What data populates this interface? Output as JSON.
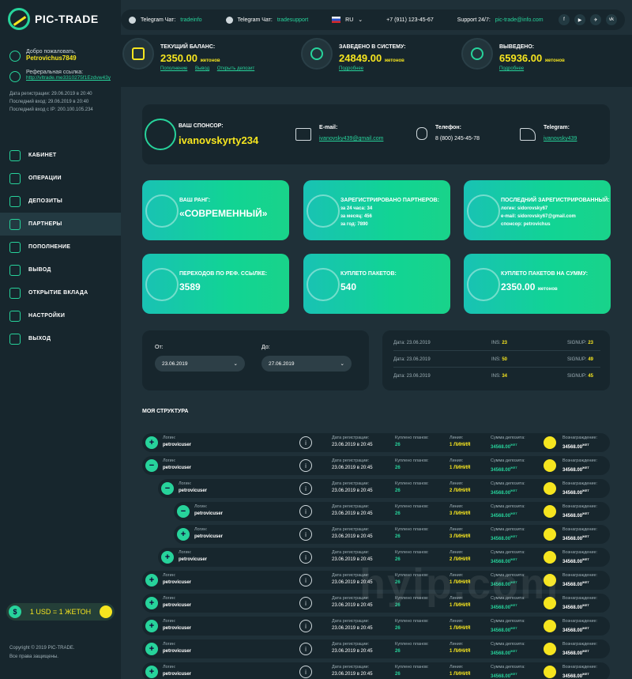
{
  "brand": {
    "name": "PIC-TRADE"
  },
  "user": {
    "welcome": "Добро пожаловать,",
    "name": "Petrovichus7849",
    "ref_label": "Реферальная ссылка:",
    "ref_link": "http://vltrade.me3310275f1Ezdvw43y",
    "reg_date": "Дата регистрации: 29.06.2019 в 20:40",
    "last_login": "Последний вход: 29.06.2019 в 20:40",
    "last_ip": "Последний вход с IP: 200.100.105.234"
  },
  "nav": [
    {
      "label": "КАБИНЕТ",
      "icon": "wallet-icon"
    },
    {
      "label": "ОПЕРАЦИИ",
      "icon": "calendar-icon"
    },
    {
      "label": "ДЕПОЗИТЫ",
      "icon": "cash-icon"
    },
    {
      "label": "ПАРТНЕРЫ",
      "icon": "partners-icon"
    },
    {
      "label": "ПОПОЛНЕНИЕ",
      "icon": "coins-icon"
    },
    {
      "label": "ВЫВОД",
      "icon": "withdraw-icon"
    },
    {
      "label": "ОТКРЫТИЕ ВКЛАДА",
      "icon": "open-deposit-icon"
    },
    {
      "label": "НАСТРОЙКИ",
      "icon": "gear-icon"
    },
    {
      "label": "ВЫХОД",
      "icon": "logout-icon"
    }
  ],
  "rate": {
    "symbol": "$",
    "text": "1 USD = 1 ЖЕТОН"
  },
  "copyright": {
    "line1": "Copyright © 2019 PIC-TRADE.",
    "line2": "Все права защищены."
  },
  "topbar": {
    "tg_chat_label": "Telegram Чат:",
    "tg_chat_value": "tradeinfo",
    "tg_chat2_label": "Telegram Чат:",
    "tg_chat2_value": "tradesupport",
    "lang": "RU",
    "phone": "+7 (911) 123-45-67",
    "support_label": "Support 24/7:",
    "support_email": "pic-trade@info.com",
    "socials": [
      "f",
      "▶",
      "✈",
      "vk"
    ]
  },
  "stats": {
    "balance_label": "ТЕКУЩИЙ БАЛАНС:",
    "balance_value": "2350.00",
    "balance_unit": "жетонов",
    "balance_links": [
      "Пополнение",
      "Вывод",
      "Открыть депозит"
    ],
    "in_label": "ЗАВЕДЕНО В СИСТЕМУ:",
    "in_value": "24849.00",
    "in_unit": "жетонов",
    "in_link": "Подробнее",
    "out_label": "ВЫВЕДЕНО:",
    "out_value": "65936.00",
    "out_unit": "жетонов",
    "out_link": "Подробнее"
  },
  "sponsor": {
    "label": "ВАШ СПОНСОР:",
    "name": "ivanovskyrty234",
    "email_label": "E-mail:",
    "email": "ivanovsky439@gmail.com",
    "phone_label": "Телефон:",
    "phone": "8 (800) 245-45-78",
    "tg_label": "Telegram:",
    "tg": "ivanovsky439"
  },
  "cards": {
    "rank_label": "ВАШ РАНГ:",
    "rank_value": "«СОВРЕМЕННЫЙ»",
    "reg_label": "ЗАРЕГИСТРИРОВАНО ПАРТНЕРОВ:",
    "reg_24": "за 24 часа:",
    "reg_24_v": "34",
    "reg_month": "за месяц:",
    "reg_month_v": "456",
    "reg_year": "за год:",
    "reg_year_v": "7890",
    "last_label": "ПОСЛЕДНИЙ ЗАРЕГИСТРИРОВАННЫЙ:",
    "last_login_l": "логин:",
    "last_login": "sidorovsky67",
    "last_email_l": "e-mail:",
    "last_email": "sidorovsky67@gmail.com",
    "last_sponsor_l": "спонсор:",
    "last_sponsor": "petrovichus",
    "clicks_label": "ПЕРЕХОДОВ ПО РЕФ. ССЫЛКЕ:",
    "clicks_value": "3589",
    "packs_label": "КУПЛЕТО ПАКЕТОВ:",
    "packs_value": "540",
    "packsum_label": "КУПЛЕТО ПАКЕТОВ НА СУММУ:",
    "packsum_value": "2350.00",
    "packsum_unit": "жетонов"
  },
  "filter": {
    "from_label": "От:",
    "from_value": "23.06.2019",
    "to_label": "До:",
    "to_value": "27.06.2019"
  },
  "summary": [
    {
      "date": "Дата: 23.06.2019",
      "ins_l": "INS:",
      "ins": "23",
      "sign_l": "SIGNUP:",
      "sign": "23"
    },
    {
      "date": "Дата: 23.06.2019",
      "ins_l": "INS:",
      "ins": "50",
      "sign_l": "SIGNUP:",
      "sign": "49"
    },
    {
      "date": "Дата: 23.06.2019",
      "ins_l": "INS:",
      "ins": "34",
      "sign_l": "SIGNUP:",
      "sign": "45"
    }
  ],
  "structure": {
    "title": "МОЯ СТРУКТУРА",
    "labels": {
      "login": "Логин:",
      "reg": "Дата регистрации:",
      "plans": "Куплено планов:",
      "line": "Линия:",
      "dep": "Сумма депозита:",
      "reward": "Вознаграждение:",
      "unit": "ЖЕТ"
    },
    "rows": [
      {
        "toggle": "+",
        "level": 0,
        "login": "petrovicuser",
        "reg": "23.06.2019 в 20:45",
        "plans": "26",
        "line": "1 ЛИНИЯ",
        "dep": "34568.00",
        "reward": "34568.00"
      },
      {
        "toggle": "−",
        "level": 0,
        "login": "petrovicuser",
        "reg": "23.06.2019 в 20:45",
        "plans": "26",
        "line": "1 ЛИНИЯ",
        "dep": "34568.00",
        "reward": "34568.00"
      },
      {
        "toggle": "−",
        "level": 1,
        "login": "petrovicuser",
        "reg": "23.06.2019 в 20:45",
        "plans": "26",
        "line": "2 ЛИНИЯ",
        "dep": "34568.00",
        "reward": "34568.00"
      },
      {
        "toggle": "−",
        "level": 2,
        "login": "petrovicuser",
        "reg": "23.06.2019 в 20:45",
        "plans": "26",
        "line": "3 ЛИНИЯ",
        "dep": "34568.00",
        "reward": "34568.00"
      },
      {
        "toggle": "+",
        "level": 2,
        "login": "petrovicuser",
        "reg": "23.06.2019 в 20:45",
        "plans": "26",
        "line": "3 ЛИНИЯ",
        "dep": "34568.00",
        "reward": "34568.00"
      },
      {
        "toggle": "+",
        "level": 1,
        "login": "petrovicuser",
        "reg": "23.06.2019 в 20:45",
        "plans": "26",
        "line": "2 ЛИНИЯ",
        "dep": "34568.00",
        "reward": "34568.00"
      },
      {
        "toggle": "+",
        "level": 0,
        "login": "petrovicuser",
        "reg": "23.06.2019 в 20:45",
        "plans": "26",
        "line": "1 ЛИНИЯ",
        "dep": "34568.00",
        "reward": "34568.00"
      },
      {
        "toggle": "+",
        "level": 0,
        "login": "petrovicuser",
        "reg": "23.06.2019 в 20:45",
        "plans": "26",
        "line": "1 ЛИНИЯ",
        "dep": "34568.00",
        "reward": "34568.00"
      },
      {
        "toggle": "+",
        "level": 0,
        "login": "petrovicuser",
        "reg": "23.06.2019 в 20:45",
        "plans": "26",
        "line": "1 ЛИНИЯ",
        "dep": "34568.00",
        "reward": "34568.00"
      },
      {
        "toggle": "+",
        "level": 0,
        "login": "petrovicuser",
        "reg": "23.06.2019 в 20:45",
        "plans": "26",
        "line": "1 ЛИНИЯ",
        "dep": "34568.00",
        "reward": "34568.00"
      },
      {
        "toggle": "+",
        "level": 0,
        "login": "petrovicuser",
        "reg": "23.06.2019 в 20:45",
        "plans": "26",
        "line": "1 ЛИНИЯ",
        "dep": "34568.00",
        "reward": "34568.00"
      }
    ]
  },
  "watermark": "hyip.com"
}
